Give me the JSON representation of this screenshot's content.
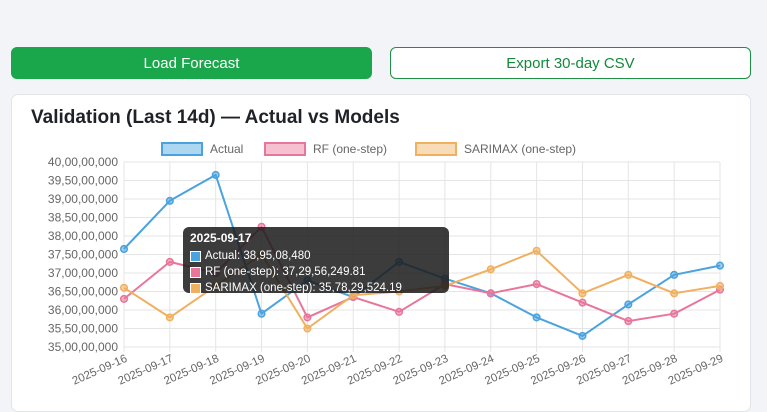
{
  "toolbar": {
    "load_label": "Load Forecast",
    "export_label": "Export 30-day CSV"
  },
  "card": {
    "title": "Validation (Last 14d) — Actual vs Models"
  },
  "colors": {
    "primary": "#1aa64a",
    "actual": "#4aa3df",
    "rf": "#e8769a",
    "sarimax": "#f0b060"
  },
  "chart_data": {
    "type": "line",
    "title": "Validation (Last 14d) — Actual vs Models",
    "legend_position": "top",
    "grid": true,
    "ylim": [
      350000000,
      400000000
    ],
    "y_ticks": [
      {
        "value": 400000000,
        "label": "40,00,00,000"
      },
      {
        "value": 395000000,
        "label": "39,50,00,000"
      },
      {
        "value": 390000000,
        "label": "39,00,00,000"
      },
      {
        "value": 385000000,
        "label": "38,50,00,000"
      },
      {
        "value": 380000000,
        "label": "38,00,00,000"
      },
      {
        "value": 375000000,
        "label": "37,50,00,000"
      },
      {
        "value": 370000000,
        "label": "37,00,00,000"
      },
      {
        "value": 365000000,
        "label": "36,50,00,000"
      },
      {
        "value": 360000000,
        "label": "36,00,00,000"
      },
      {
        "value": 355000000,
        "label": "35,50,00,000"
      },
      {
        "value": 350000000,
        "label": "35,00,00,000"
      }
    ],
    "x": [
      "2025-09-16",
      "2025-09-17",
      "2025-09-18",
      "2025-09-19",
      "2025-09-20",
      "2025-09-21",
      "2025-09-22",
      "2025-09-23",
      "2025-09-24",
      "2025-09-25",
      "2025-09-26",
      "2025-09-27",
      "2025-09-28",
      "2025-09-29"
    ],
    "series": [
      {
        "name": "Actual",
        "color": "#4aa3df",
        "values": [
          376500000,
          389500000,
          396500000,
          359000000,
          368000000,
          363500000,
          373000000,
          368500000,
          364500000,
          358000000,
          353000000,
          361500000,
          369500000,
          372000000
        ]
      },
      {
        "name": "RF (one-step)",
        "color": "#e8769a",
        "values": [
          363000000,
          373000000,
          370000000,
          382500000,
          358000000,
          363500000,
          359500000,
          367000000,
          364500000,
          367000000,
          362000000,
          357000000,
          359000000,
          365500000
        ]
      },
      {
        "name": "SARIMAX (one-step)",
        "color": "#f0b060",
        "values": [
          366000000,
          358000000,
          366500000,
          375000000,
          355000000,
          364000000,
          365000000,
          366500000,
          371000000,
          376000000,
          364500000,
          369500000,
          364500000,
          366500000
        ]
      }
    ],
    "tooltip": {
      "title": "2025-09-17",
      "lines": [
        {
          "label": "Actual: 38,95,08,480",
          "color": "#4aa3df"
        },
        {
          "label": "RF (one-step): 37,29,56,249.81",
          "color": "#e8769a"
        },
        {
          "label": "SARIMAX (one-step): 35,78,29,524.19",
          "color": "#f0b060"
        }
      ]
    }
  }
}
